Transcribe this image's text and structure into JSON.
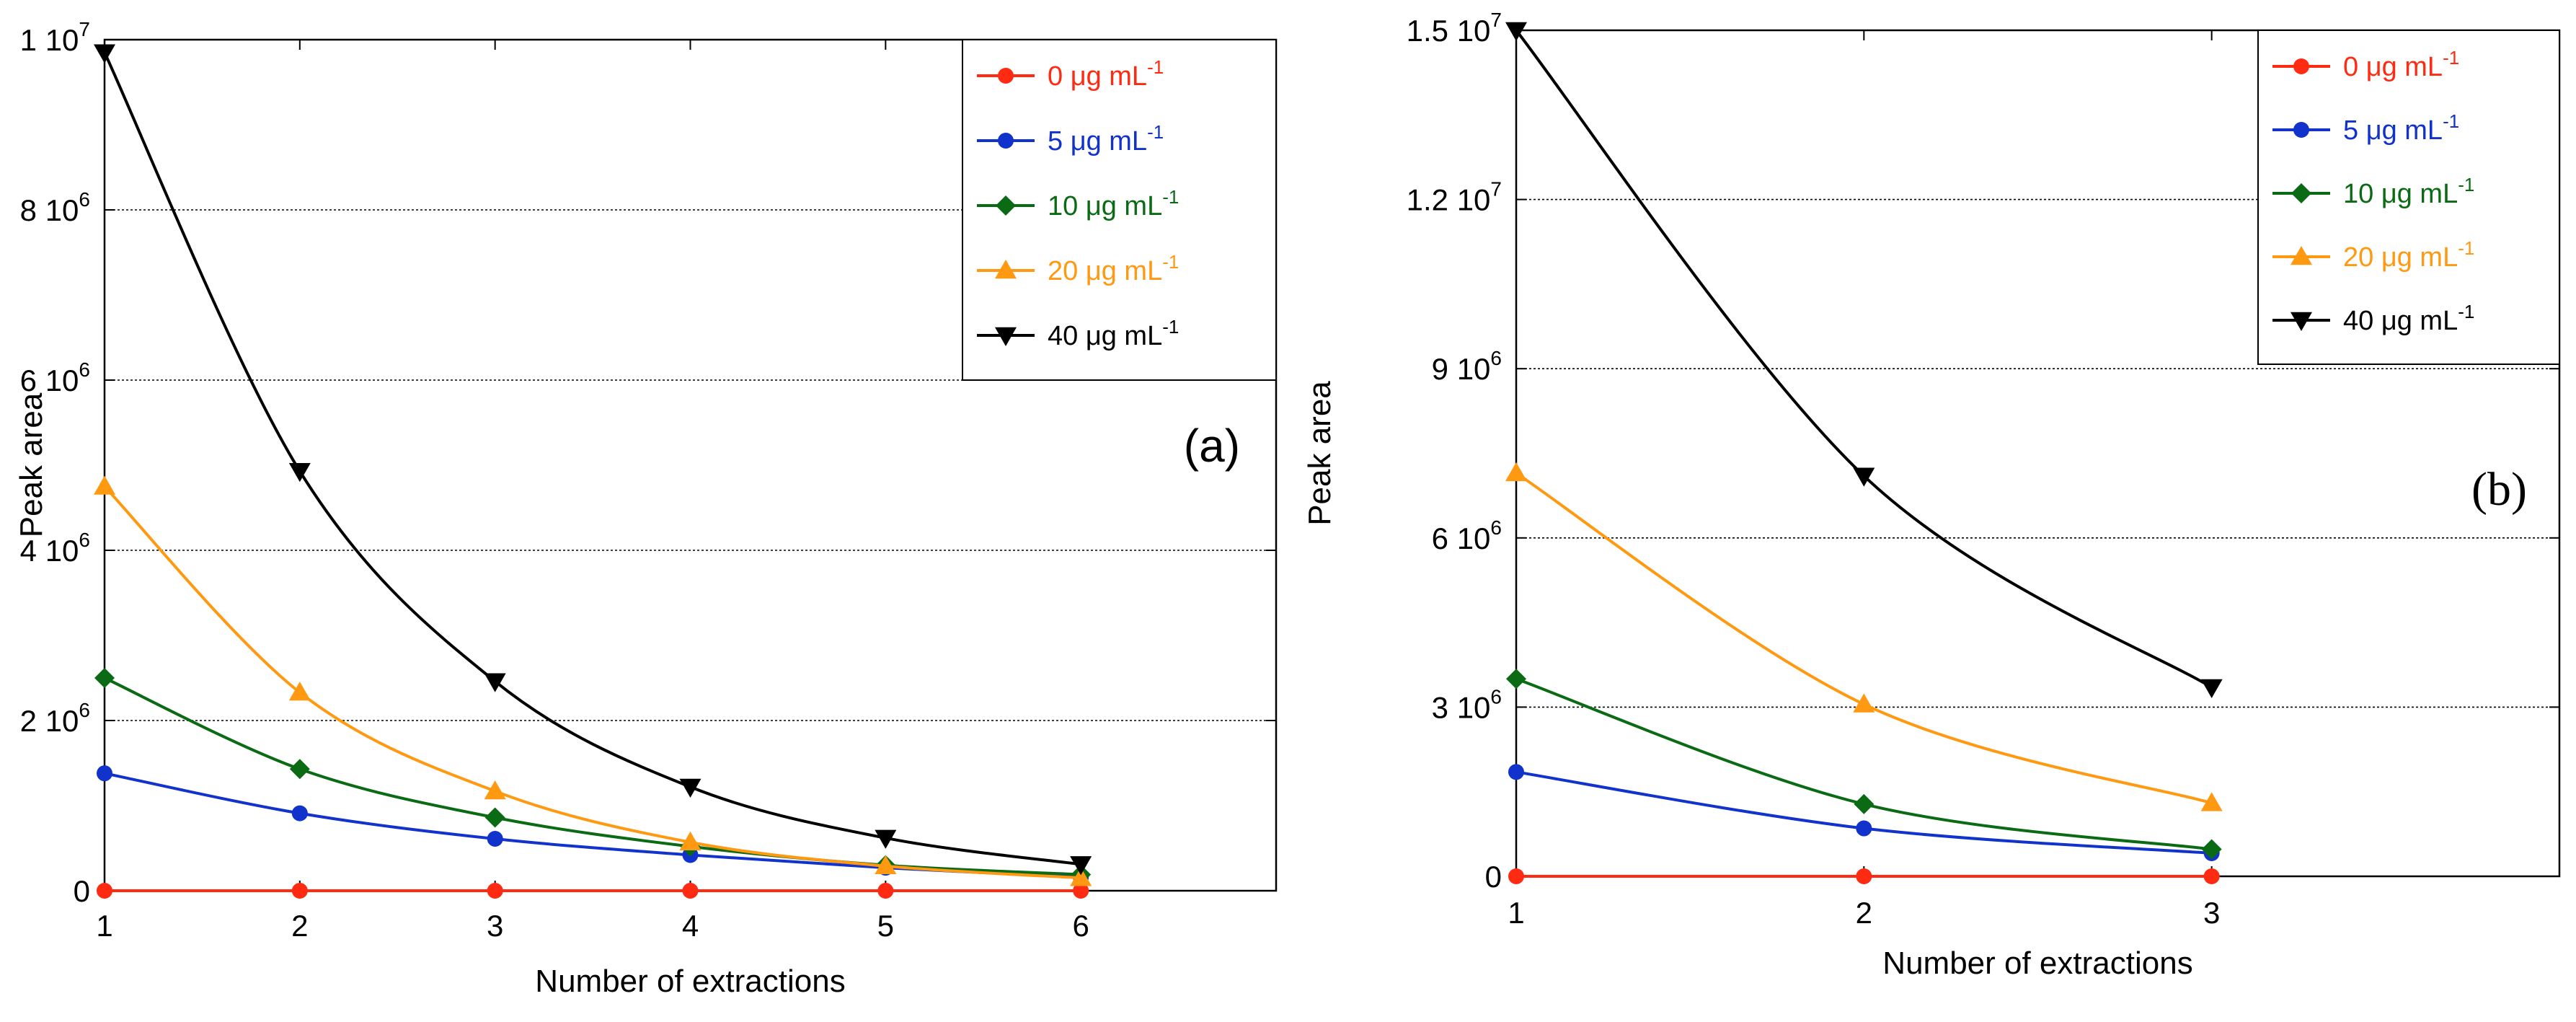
{
  "chart_data": [
    {
      "type": "line",
      "panel_label": "(a)",
      "xlabel": "Number of extractions",
      "ylabel": "Peak area",
      "xlim": [
        1,
        7
      ],
      "ylim": [
        0,
        10000000
      ],
      "xticks": [
        1,
        2,
        3,
        4,
        5,
        6
      ],
      "xtick_labels": [
        "1",
        "2",
        "3",
        "4",
        "5",
        "6"
      ],
      "yticks": [
        0,
        2000000,
        4000000,
        6000000,
        8000000,
        10000000
      ],
      "ytick_labels": [
        {
          "mant": "0",
          "exp": ""
        },
        {
          "mant": "2 10",
          "exp": "6"
        },
        {
          "mant": "4 10",
          "exp": "6"
        },
        {
          "mant": "6 10",
          "exp": "6"
        },
        {
          "mant": "8 10",
          "exp": "6"
        },
        {
          "mant": "1 10",
          "exp": "7"
        }
      ],
      "grid": "horizontal",
      "legend_position": "top-right",
      "x": [
        1,
        2,
        3,
        4,
        5,
        6
      ],
      "series": [
        {
          "name": "0 μg mL",
          "name_exp": "-1",
          "color": "#ff2a12",
          "marker": "circle",
          "values": [
            0,
            0,
            0,
            0,
            0,
            0
          ]
        },
        {
          "name": "5 μg mL",
          "name_exp": "-1",
          "color": "#1133cc",
          "marker": "circle",
          "values": [
            1380000,
            910000,
            610000,
            420000,
            270000,
            160000
          ]
        },
        {
          "name": "10 μg mL",
          "name_exp": "-1",
          "color": "#0a6b14",
          "marker": "diamond",
          "values": [
            2500000,
            1430000,
            860000,
            520000,
            300000,
            190000
          ]
        },
        {
          "name": "20 μg mL",
          "name_exp": "-1",
          "color": "#ff9911",
          "marker": "triangle-up",
          "values": [
            4750000,
            2330000,
            1170000,
            570000,
            290000,
            150000
          ]
        },
        {
          "name": "40 μg mL",
          "name_exp": "-1",
          "color": "#000000",
          "marker": "triangle-down",
          "values": [
            9850000,
            4930000,
            2460000,
            1220000,
            620000,
            310000
          ]
        }
      ]
    },
    {
      "type": "line",
      "panel_label": "(b)",
      "xlabel": "Number of extractions",
      "ylabel": "Peak area",
      "xlim": [
        1,
        4
      ],
      "ylim": [
        0,
        15000000
      ],
      "xticks": [
        1,
        2,
        3
      ],
      "xtick_labels": [
        "1",
        "2",
        "3"
      ],
      "yticks": [
        0,
        3000000,
        6000000,
        9000000,
        12000000,
        15000000
      ],
      "ytick_labels": [
        {
          "mant": "0",
          "exp": ""
        },
        {
          "mant": "3 10",
          "exp": "6"
        },
        {
          "mant": "6 10",
          "exp": "6"
        },
        {
          "mant": "9 10",
          "exp": "6"
        },
        {
          "mant": "1.2 10",
          "exp": "7"
        },
        {
          "mant": "1.5 10",
          "exp": "7"
        }
      ],
      "grid": "horizontal",
      "legend_position": "top-right",
      "x": [
        1,
        2,
        3
      ],
      "series": [
        {
          "name": "0 μg mL",
          "name_exp": "-1",
          "color": "#ff2a12",
          "marker": "circle",
          "values": [
            0,
            0,
            0
          ]
        },
        {
          "name": "5 μg mL",
          "name_exp": "-1",
          "color": "#1133cc",
          "marker": "circle",
          "values": [
            1850000,
            850000,
            410000
          ]
        },
        {
          "name": "10 μg mL",
          "name_exp": "-1",
          "color": "#0a6b14",
          "marker": "diamond",
          "values": [
            3500000,
            1280000,
            480000
          ]
        },
        {
          "name": "20 μg mL",
          "name_exp": "-1",
          "color": "#ff9911",
          "marker": "triangle-up",
          "values": [
            7150000,
            3050000,
            1300000
          ]
        },
        {
          "name": "40 μg mL",
          "name_exp": "-1",
          "color": "#000000",
          "marker": "triangle-down",
          "values": [
            15000000,
            7100000,
            3350000
          ]
        }
      ]
    }
  ]
}
